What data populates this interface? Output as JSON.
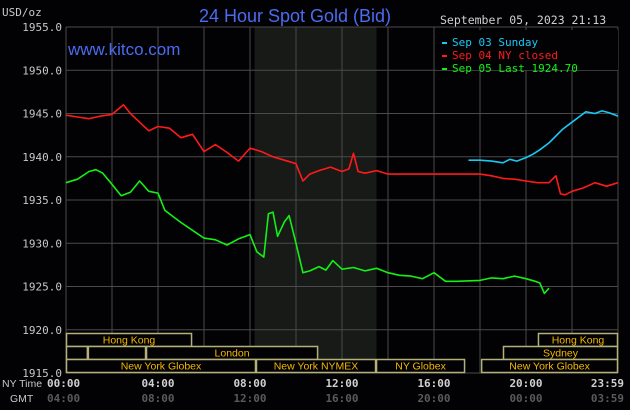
{
  "chart_data": {
    "type": "line",
    "title": "24 Hour Spot Gold (Bid)",
    "ylabel": "USD/oz",
    "watermark": "www.kitco.com",
    "timestamp": "September 05, 2023 21:13",
    "ylim": [
      1915,
      1955
    ],
    "xlim": [
      0,
      24
    ],
    "yticks": [
      "1955.0",
      "1950.0",
      "1945.0",
      "1940.0",
      "1935.0",
      "1930.0",
      "1925.0",
      "1920.0",
      "1915.0"
    ],
    "ytick_values": [
      1955,
      1950,
      1945,
      1940,
      1935,
      1930,
      1925,
      1920,
      1915
    ],
    "x_row_labels": {
      "ny": "NY Time",
      "gmt": "GMT"
    },
    "xticks_ny": [
      "00:00",
      "04:00",
      "08:00",
      "12:00",
      "16:00",
      "20:00",
      "23:59"
    ],
    "xticks_gmt": [
      "04:00",
      "08:00",
      "12:00",
      "16:00",
      "20:00",
      "00:00",
      "03:59"
    ],
    "xtick_hours": [
      0,
      4,
      8,
      12,
      16,
      20,
      24
    ],
    "grid": true,
    "shaded_hours": [
      8.2,
      13.5
    ],
    "legend_placement": "top-right",
    "series": [
      {
        "name": "Sep 03 Sunday",
        "color": "#19c8f5",
        "x": [
          17.5,
          18.0,
          18.5,
          19.0,
          19.3,
          19.6,
          20.0,
          20.3,
          20.6,
          21.0,
          21.3,
          21.6,
          22.0,
          22.3,
          22.6,
          23.0,
          23.3,
          23.6,
          24.0
        ],
        "y": [
          1939.6,
          1939.6,
          1939.5,
          1939.3,
          1939.7,
          1939.5,
          1939.9,
          1940.3,
          1940.8,
          1941.6,
          1942.4,
          1943.2,
          1944.0,
          1944.6,
          1945.2,
          1945.0,
          1945.3,
          1945.1,
          1944.7
        ]
      },
      {
        "name": "Sep 04 NY closed",
        "color": "#ff1a1a",
        "x": [
          0,
          0.5,
          1.0,
          1.5,
          2.0,
          2.5,
          2.8,
          3.2,
          3.6,
          4.0,
          4.5,
          5.0,
          5.5,
          6.0,
          6.5,
          7.0,
          7.5,
          8.0,
          8.5,
          9.0,
          9.5,
          10.0,
          10.3,
          10.6,
          11.0,
          11.5,
          12.0,
          12.3,
          12.5,
          12.7,
          13.0,
          13.5,
          14.0,
          15.0,
          16.0,
          17.0,
          18.0,
          18.5,
          19.0,
          19.5,
          20.0,
          20.5,
          21.0,
          21.3,
          21.5,
          21.7,
          22.0,
          22.5,
          23.0,
          23.5,
          24.0
        ],
        "y": [
          1944.8,
          1944.6,
          1944.4,
          1944.7,
          1944.9,
          1946.0,
          1945.0,
          1944.0,
          1943.0,
          1943.5,
          1943.3,
          1942.2,
          1942.6,
          1940.6,
          1941.4,
          1940.5,
          1939.5,
          1941.0,
          1940.6,
          1940.0,
          1939.6,
          1939.2,
          1937.2,
          1938.0,
          1938.4,
          1938.8,
          1938.3,
          1938.6,
          1940.4,
          1938.3,
          1938.1,
          1938.4,
          1938.0,
          1938.0,
          1938.0,
          1938.0,
          1938.0,
          1937.8,
          1937.5,
          1937.4,
          1937.2,
          1937.0,
          1937.0,
          1937.8,
          1935.7,
          1935.6,
          1936.0,
          1936.4,
          1937.0,
          1936.6,
          1937.0
        ]
      },
      {
        "name": "Sep 05 Last 1924.70",
        "color": "#14f014",
        "x": [
          0,
          0.5,
          1.0,
          1.3,
          1.6,
          2.0,
          2.4,
          2.8,
          3.2,
          3.6,
          4.0,
          4.3,
          4.6,
          5.0,
          5.5,
          6.0,
          6.5,
          7.0,
          7.5,
          8.0,
          8.3,
          8.6,
          8.8,
          9.0,
          9.2,
          9.5,
          9.7,
          10.0,
          10.3,
          10.6,
          11.0,
          11.3,
          11.6,
          12.0,
          12.5,
          13.0,
          13.5,
          14.0,
          14.5,
          15.0,
          15.5,
          16.0,
          16.5,
          17.0,
          18.0,
          18.5,
          19.0,
          19.5,
          20.0,
          20.4,
          20.6,
          20.8,
          21.0
        ],
        "y": [
          1937.0,
          1937.4,
          1938.3,
          1938.5,
          1938.1,
          1936.8,
          1935.5,
          1935.9,
          1937.2,
          1936.0,
          1935.8,
          1933.8,
          1933.2,
          1932.4,
          1931.5,
          1930.6,
          1930.4,
          1929.8,
          1930.5,
          1931.0,
          1929.0,
          1928.4,
          1933.4,
          1933.6,
          1930.8,
          1932.5,
          1933.2,
          1930.0,
          1926.6,
          1926.8,
          1927.3,
          1926.9,
          1928.0,
          1927.0,
          1927.2,
          1926.8,
          1927.1,
          1926.6,
          1926.3,
          1926.2,
          1925.9,
          1926.6,
          1925.6,
          1925.6,
          1925.7,
          1926.0,
          1925.9,
          1926.2,
          1925.9,
          1925.6,
          1925.4,
          1924.2,
          1924.8
        ]
      }
    ],
    "sessions": [
      {
        "label": "Hong Kong",
        "row": 0,
        "start": 0,
        "end": 5.48
      },
      {
        "label": "Hong Kong",
        "row": 0,
        "start": 20.52,
        "end": 24
      },
      {
        "label": "",
        "row": 1,
        "start": 0,
        "end": 0.95
      },
      {
        "label": "",
        "row": 1,
        "start": 0.95,
        "end": 3.48
      },
      {
        "label": "London",
        "row": 1,
        "start": 3.48,
        "end": 10.96
      },
      {
        "label": "Sydney",
        "row": 1,
        "start": 19.0,
        "end": 24
      },
      {
        "label": "New York Globex",
        "row": 2,
        "start": 0,
        "end": 8.26
      },
      {
        "label": "New York NYMEX",
        "row": 2,
        "start": 8.26,
        "end": 13.48
      },
      {
        "label": "NY Globex",
        "row": 2,
        "start": 13.48,
        "end": 17.35
      },
      {
        "label": "New York Globex",
        "row": 2,
        "start": 18.05,
        "end": 24
      }
    ]
  }
}
